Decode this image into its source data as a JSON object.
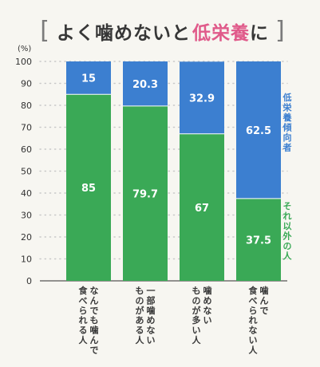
{
  "title": {
    "open_bracket": "[",
    "part1": "よく噛めないと",
    "part2": "低栄養",
    "part3": "に",
    "close_bracket": "]"
  },
  "colors": {
    "green": "#3aa956",
    "blue": "#3c7fd0",
    "grid": "#c9c9c9",
    "axis": "#555555",
    "title_accent": "#e05a8a"
  },
  "chart_data": {
    "type": "bar",
    "stacked": true,
    "unit": "(%)",
    "ylim": [
      0,
      100
    ],
    "yticks": [
      0,
      10,
      20,
      30,
      40,
      50,
      60,
      70,
      80,
      90,
      100
    ],
    "grid": true,
    "categories": [
      "なんでも噛んで食べられる人",
      "一部噛めないものがある人",
      "噛めないものが多い人",
      "噛んで食べられない人"
    ],
    "category_lines": [
      [
        "なんでも噛んで",
        "食べられる人"
      ],
      [
        "一部噛めない",
        "ものがある人"
      ],
      [
        "噛めない",
        "ものが多い人"
      ],
      [
        "噛んで",
        "食べられない人"
      ]
    ],
    "series": [
      {
        "name": "それ以外の人",
        "values": [
          85,
          79.7,
          67,
          37.5
        ],
        "color": "#3aa956"
      },
      {
        "name": "低栄養傾向者",
        "values": [
          15,
          20.3,
          32.9,
          62.5
        ],
        "color": "#3c7fd0"
      }
    ],
    "value_labels": [
      [
        "85",
        "79.7",
        "67",
        "37.5"
      ],
      [
        "15",
        "20.3",
        "32.9",
        "62.5"
      ]
    ],
    "legend": {
      "placement": "right-vertical",
      "items": [
        {
          "label": "低栄養傾向者",
          "color": "#3c7fd0"
        },
        {
          "label": "それ以外の人",
          "color": "#3aa956"
        }
      ]
    }
  }
}
